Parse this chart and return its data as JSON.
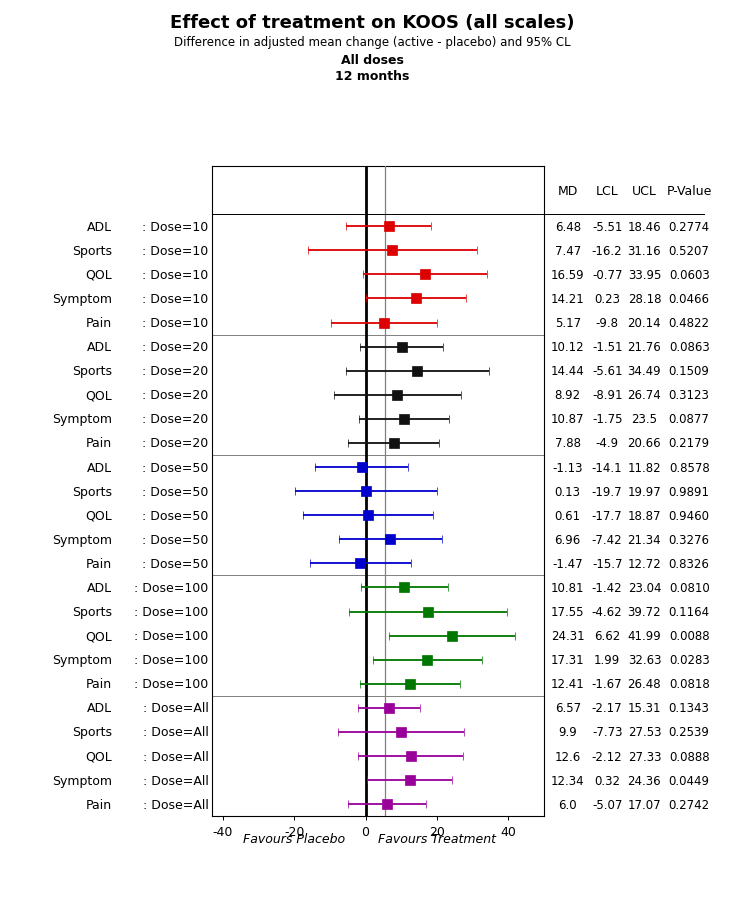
{
  "title": "Effect of treatment on KOOS (all scales)",
  "subtitle1": "Difference in adjusted mean change (active - placebo) and 95% CL",
  "subtitle2": "All doses",
  "subtitle3": "12 months",
  "col_headers": [
    "MD",
    "LCL",
    "UCL",
    "P-Value"
  ],
  "rows": [
    {
      "label1": "ADL",
      "label2": ": Dose=10",
      "md": 6.48,
      "lcl": -5.51,
      "ucl": 18.46,
      "pval": "0.2774",
      "color": "#dd0000",
      "group": 0
    },
    {
      "label1": "Sports",
      "label2": ": Dose=10",
      "md": 7.47,
      "lcl": -16.2,
      "ucl": 31.16,
      "pval": "0.5207",
      "color": "#dd0000",
      "group": 0
    },
    {
      "label1": "QOL",
      "label2": ": Dose=10",
      "md": 16.59,
      "lcl": -0.77,
      "ucl": 33.95,
      "pval": "0.0603",
      "color": "#dd0000",
      "group": 0
    },
    {
      "label1": "Symptom",
      "label2": ": Dose=10",
      "md": 14.21,
      "lcl": 0.23,
      "ucl": 28.18,
      "pval": "0.0466",
      "color": "#dd0000",
      "group": 0
    },
    {
      "label1": "Pain",
      "label2": ": Dose=10",
      "md": 5.17,
      "lcl": -9.8,
      "ucl": 20.14,
      "pval": "0.4822",
      "color": "#dd0000",
      "group": 0
    },
    {
      "label1": "ADL",
      "label2": ": Dose=20",
      "md": 10.12,
      "lcl": -1.51,
      "ucl": 21.76,
      "pval": "0.0863",
      "color": "#111111",
      "group": 1
    },
    {
      "label1": "Sports",
      "label2": ": Dose=20",
      "md": 14.44,
      "lcl": -5.61,
      "ucl": 34.49,
      "pval": "0.1509",
      "color": "#111111",
      "group": 1
    },
    {
      "label1": "QOL",
      "label2": ": Dose=20",
      "md": 8.92,
      "lcl": -8.91,
      "ucl": 26.74,
      "pval": "0.3123",
      "color": "#111111",
      "group": 1
    },
    {
      "label1": "Symptom",
      "label2": ": Dose=20",
      "md": 10.87,
      "lcl": -1.75,
      "ucl": 23.5,
      "pval": "0.0877",
      "color": "#111111",
      "group": 1
    },
    {
      "label1": "Pain",
      "label2": ": Dose=20",
      "md": 7.88,
      "lcl": -4.9,
      "ucl": 20.66,
      "pval": "0.2179",
      "color": "#111111",
      "group": 1
    },
    {
      "label1": "ADL",
      "label2": ": Dose=50",
      "md": -1.13,
      "lcl": -14.1,
      "ucl": 11.82,
      "pval": "0.8578",
      "color": "#0000cc",
      "group": 2
    },
    {
      "label1": "Sports",
      "label2": ": Dose=50",
      "md": 0.13,
      "lcl": -19.7,
      "ucl": 19.97,
      "pval": "0.9891",
      "color": "#0000cc",
      "group": 2
    },
    {
      "label1": "QOL",
      "label2": ": Dose=50",
      "md": 0.61,
      "lcl": -17.7,
      "ucl": 18.87,
      "pval": "0.9460",
      "color": "#0000cc",
      "group": 2
    },
    {
      "label1": "Symptom",
      "label2": ": Dose=50",
      "md": 6.96,
      "lcl": -7.42,
      "ucl": 21.34,
      "pval": "0.3276",
      "color": "#0000cc",
      "group": 2
    },
    {
      "label1": "Pain",
      "label2": ": Dose=50",
      "md": -1.47,
      "lcl": -15.7,
      "ucl": 12.72,
      "pval": "0.8326",
      "color": "#0000cc",
      "group": 2
    },
    {
      "label1": "ADL",
      "label2": ": Dose=100",
      "md": 10.81,
      "lcl": -1.42,
      "ucl": 23.04,
      "pval": "0.0810",
      "color": "#007700",
      "group": 3
    },
    {
      "label1": "Sports",
      "label2": ": Dose=100",
      "md": 17.55,
      "lcl": -4.62,
      "ucl": 39.72,
      "pval": "0.1164",
      "color": "#007700",
      "group": 3
    },
    {
      "label1": "QOL",
      "label2": ": Dose=100",
      "md": 24.31,
      "lcl": 6.62,
      "ucl": 41.99,
      "pval": "0.0088",
      "color": "#007700",
      "group": 3
    },
    {
      "label1": "Symptom",
      "label2": ": Dose=100",
      "md": 17.31,
      "lcl": 1.99,
      "ucl": 32.63,
      "pval": "0.0283",
      "color": "#007700",
      "group": 3
    },
    {
      "label1": "Pain",
      "label2": ": Dose=100",
      "md": 12.41,
      "lcl": -1.67,
      "ucl": 26.48,
      "pval": "0.0818",
      "color": "#007700",
      "group": 3
    },
    {
      "label1": "ADL",
      "label2": ": Dose=All",
      "md": 6.57,
      "lcl": -2.17,
      "ucl": 15.31,
      "pval": "0.1343",
      "color": "#990099",
      "group": 4
    },
    {
      "label1": "Sports",
      "label2": ": Dose=All",
      "md": 9.9,
      "lcl": -7.73,
      "ucl": 27.53,
      "pval": "0.2539",
      "color": "#990099",
      "group": 4
    },
    {
      "label1": "QOL",
      "label2": ": Dose=All",
      "md": 12.6,
      "lcl": -2.12,
      "ucl": 27.33,
      "pval": "0.0888",
      "color": "#990099",
      "group": 4
    },
    {
      "label1": "Symptom",
      "label2": ": Dose=All",
      "md": 12.34,
      "lcl": 0.32,
      "ucl": 24.36,
      "pval": "0.0449",
      "color": "#990099",
      "group": 4
    },
    {
      "label1": "Pain",
      "label2": ": Dose=All",
      "md": 6.0,
      "lcl": -5.07,
      "ucl": 17.07,
      "pval": "0.2742",
      "color": "#990099",
      "group": 4
    }
  ],
  "xlim": [
    -43,
    50
  ],
  "xticks": [
    -40,
    -20,
    0,
    20,
    40
  ],
  "xlabel_left": "Favours Placebo",
  "xlabel_right": "Favours Treatment",
  "group_separators": [
    4.5,
    9.5,
    14.5,
    19.5
  ],
  "gray_vline_x": 5.5,
  "marker_size": 7,
  "n_header_rows": 2
}
